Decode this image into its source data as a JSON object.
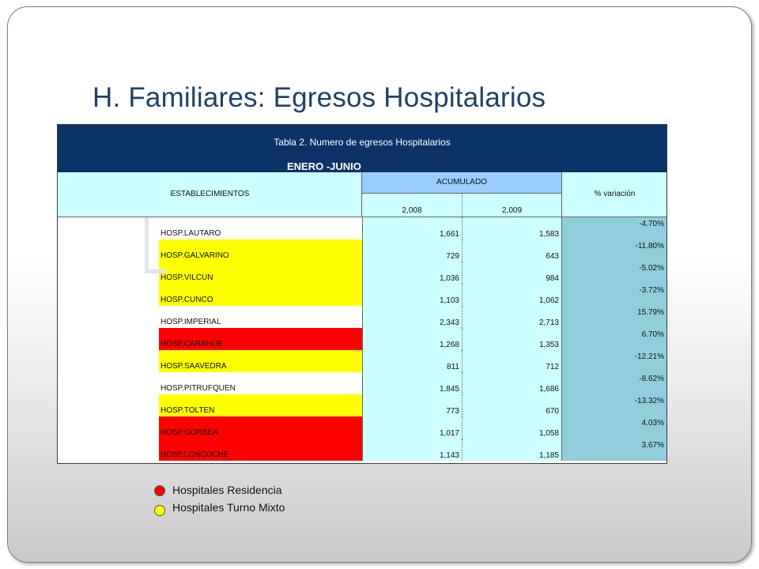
{
  "slide": {
    "title": "H. Familiares: Egresos Hospitalarios"
  },
  "table": {
    "caption": "Tabla 2. Numero de egresos Hospitalarios",
    "period": "ENERO -JUNIO",
    "col_establecimientos": "ESTABLECIMIENTOS",
    "col_acumulado": "ACUMULADO",
    "col_year1": "2,008",
    "col_year2": "2,009",
    "col_variacion": "% variación",
    "rows": [
      {
        "name": "HOSP.LAUTARO",
        "y1": "1,661",
        "y2": "1,583",
        "pct": "-4.70%",
        "type": "none"
      },
      {
        "name": "HOSP.GALVARINO",
        "y1": "729",
        "y2": "643",
        "pct": "-11.80%",
        "type": "mixto"
      },
      {
        "name": "HOSP.VILCUN",
        "y1": "1,036",
        "y2": "984",
        "pct": "-5.02%",
        "type": "mixto"
      },
      {
        "name": "HOSP.CUNCO",
        "y1": "1,103",
        "y2": "1,062",
        "pct": "-3.72%",
        "type": "mixto"
      },
      {
        "name": "HOSP.IMPERIAL",
        "y1": "2,343",
        "y2": "2,713",
        "pct": "15.79%",
        "type": "none"
      },
      {
        "name": "HOSP.CARAHUE",
        "y1": "1,268",
        "y2": "1,353",
        "pct": "6.70%",
        "type": "residencia"
      },
      {
        "name": "HOSP.SAAVEDRA",
        "y1": "811",
        "y2": "712",
        "pct": "-12.21%",
        "type": "mixto"
      },
      {
        "name": "HOSP.PITRUFQUEN",
        "y1": "1,845",
        "y2": "1,686",
        "pct": "-8.62%",
        "type": "none"
      },
      {
        "name": "HOSP.TOLTEN",
        "y1": "773",
        "y2": "670",
        "pct": "-13.32%",
        "type": "mixto"
      },
      {
        "name": "HOSP.GORBEA",
        "y1": "1,017",
        "y2": "1,058",
        "pct": "4.03%",
        "type": "residencia"
      },
      {
        "name": "HOSP.LONCOCHE",
        "y1": "1,143",
        "y2": "1,185",
        "pct": "3.67%",
        "type": "residencia"
      }
    ]
  },
  "legend": {
    "items": [
      {
        "label": "Hospitales Residencia",
        "color": "#ff0000"
      },
      {
        "label": "Hospitales Turno Mixto",
        "color": "#ffff00"
      }
    ]
  },
  "colors": {
    "title": "#1f4069",
    "header_bg": "#0b3366",
    "residencia": "#ff0000",
    "mixto": "#ffff00",
    "none": "#ffffff",
    "value_bg": "#ccffff",
    "pct_bg": "#92cddc"
  }
}
